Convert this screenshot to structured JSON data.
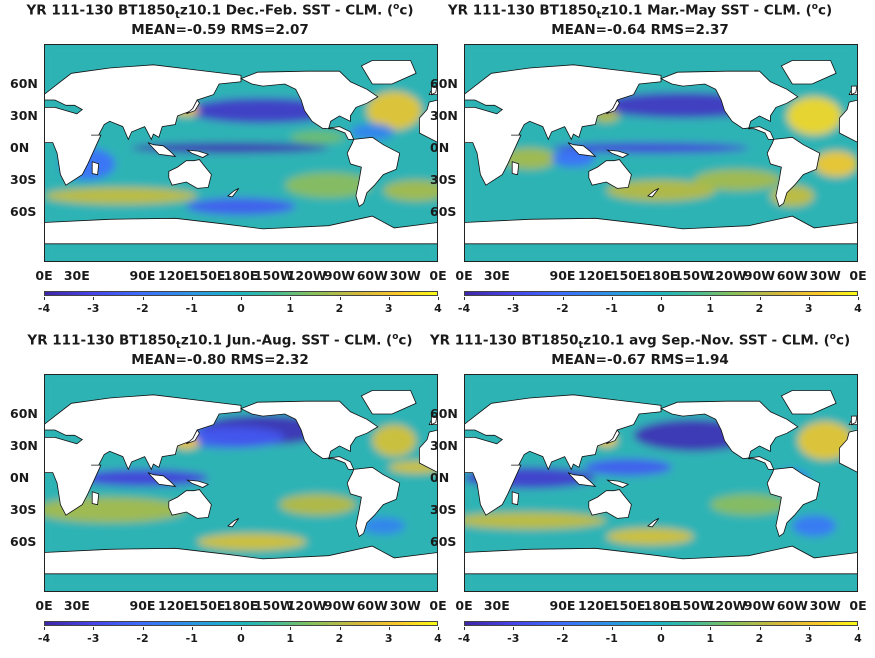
{
  "panels": [
    {
      "title": "YR 111-130 BT1850_t z10.1  Dec.-Feb. SST - CLM. (°c)",
      "title_main": "YR 111-130 BT1850",
      "title_sub": "t",
      "title_rest": "z10.1  Dec.-Feb. SST - CLM. (",
      "title_sup": "o",
      "title_end": "c)",
      "stats": "MEAN=-0.59   RMS=2.07"
    },
    {
      "title": "YR 111-130 BT1850_t z10.1 Mar.-May SST - CLM. (°c)",
      "title_main": "YR 111-130 BT1850",
      "title_sub": "t",
      "title_rest": "z10.1 Mar.-May SST - CLM. (",
      "title_sup": "o",
      "title_end": "c)",
      "stats": "MEAN=-0.64   RMS=2.37"
    },
    {
      "title": "YR 111-130 BT1850_t z10.1 Jun.-Aug. SST - CLM. (°c)",
      "title_main": "YR 111-130 BT1850",
      "title_sub": "t",
      "title_rest": "z10.1 Jun.-Aug. SST - CLM. (",
      "title_sup": "o",
      "title_end": "c)",
      "stats": "MEAN=-0.80   RMS=2.32"
    },
    {
      "title": "YR 111-130 BT1850_t z10.1 avg Sep.-Nov. SST - CLM. (°c)",
      "title_main": "YR 111-130 BT1850",
      "title_sub": "t",
      "title_rest": "z10.1 avg Sep.-Nov. SST - CLM. (",
      "title_sup": "o",
      "title_end": "c)",
      "stats": "MEAN=-0.67   RMS=1.94"
    }
  ],
  "colors": {
    "ocean_base": "#2db3b5",
    "land": "#ffffff",
    "strong_negative": "#3e26a8",
    "negative": "#3c6ffc",
    "positive": "#e0b83a",
    "strong_positive": "#f9fb15"
  },
  "chart_data": [
    {
      "type": "heatmap",
      "title": "YR 111-130 BT1850_t z10.1  Dec.-Feb. SST - CLM. (oc)",
      "subtitle": "MEAN=-0.59   RMS=2.07",
      "x_ticks": [
        "0E",
        "30E",
        "90E",
        "120E",
        "150E",
        "180E",
        "150W",
        "120W",
        "90W",
        "60W",
        "30W",
        "0E"
      ],
      "y_ticks": [
        "60N",
        "30N",
        "0N",
        "30S",
        "60S"
      ],
      "colorbar": {
        "range": [
          -4,
          4
        ],
        "ticks": [
          -4,
          -3,
          -2,
          -1,
          0,
          1,
          2,
          3,
          4
        ]
      },
      "mean": -0.59,
      "rms": 2.07
    },
    {
      "type": "heatmap",
      "title": "YR 111-130 BT1850_t z10.1 Mar.-May SST - CLM. (oc)",
      "subtitle": "MEAN=-0.64   RMS=2.37",
      "x_ticks": [
        "0E",
        "30E",
        "90E",
        "120E",
        "150E",
        "180E",
        "150W",
        "120W",
        "90W",
        "60W",
        "30W",
        "0E"
      ],
      "y_ticks": [
        "60N",
        "30N",
        "0N",
        "30S",
        "60S"
      ],
      "colorbar": {
        "range": [
          -4,
          4
        ],
        "ticks": [
          -4,
          -3,
          -2,
          -1,
          0,
          1,
          2,
          3,
          4
        ]
      },
      "mean": -0.64,
      "rms": 2.37
    },
    {
      "type": "heatmap",
      "title": "YR 111-130 BT1850_t z10.1 Jun.-Aug. SST - CLM. (oc)",
      "subtitle": "MEAN=-0.80   RMS=2.32",
      "x_ticks": [
        "0E",
        "30E",
        "90E",
        "120E",
        "150E",
        "180E",
        "150W",
        "120W",
        "90W",
        "60W",
        "30W",
        "0E"
      ],
      "y_ticks": [
        "60N",
        "30N",
        "0N",
        "30S",
        "60S"
      ],
      "colorbar": {
        "range": [
          -4,
          4
        ],
        "ticks": [
          -4,
          -3,
          -2,
          -1,
          0,
          1,
          2,
          3,
          4
        ]
      },
      "mean": -0.8,
      "rms": 2.32
    },
    {
      "type": "heatmap",
      "title": "YR 111-130 BT1850_t z10.1 avg Sep.-Nov. SST - CLM. (oc)",
      "subtitle": "MEAN=-0.67   RMS=1.94",
      "x_ticks": [
        "0E",
        "30E",
        "90E",
        "120E",
        "150E",
        "180E",
        "150W",
        "120W",
        "90W",
        "60W",
        "30W",
        "0E"
      ],
      "y_ticks": [
        "60N",
        "30N",
        "0N",
        "30S",
        "60S"
      ],
      "colorbar": {
        "range": [
          -4,
          4
        ],
        "ticks": [
          -4,
          -3,
          -2,
          -1,
          0,
          1,
          2,
          3,
          4
        ]
      },
      "mean": -0.67,
      "rms": 1.94
    }
  ]
}
